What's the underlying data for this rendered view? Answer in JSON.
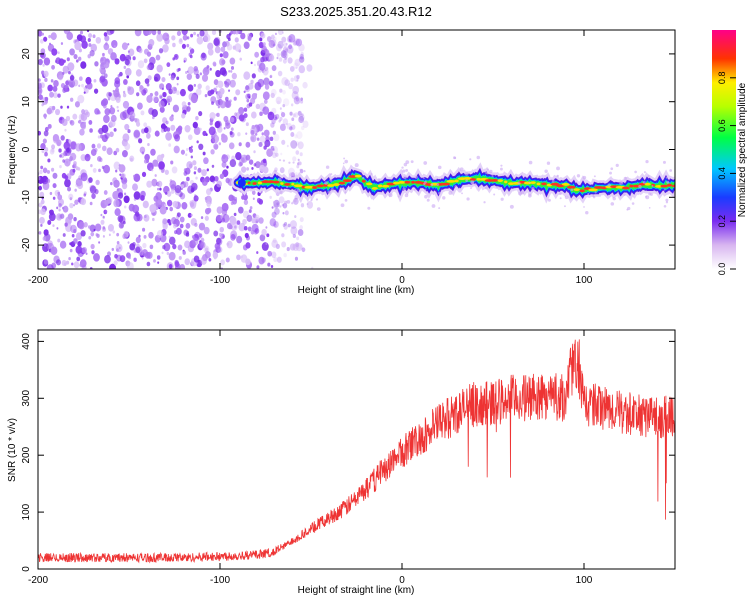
{
  "figure_title": "S233.2025.351.20.43.R12",
  "chart_data": [
    {
      "type": "heatmap",
      "xlabel": "Height of straight line (km)",
      "ylabel": "Frequency (Hz)",
      "xlim": [
        -200,
        150
      ],
      "ylim": [
        -25,
        25
      ],
      "x_ticks": [
        -200,
        -100,
        0,
        100
      ],
      "y_ticks": [
        -20,
        -10,
        0,
        10,
        20
      ],
      "x_tick_labels": [
        "-200",
        "-100",
        "0",
        "100"
      ],
      "y_tick_labels": [
        "-20",
        "-10",
        "0",
        "10",
        "20"
      ],
      "colorbar": {
        "label": "Normalized spectral amplitude",
        "range": [
          0,
          1
        ],
        "ticks": [
          0,
          0.2,
          0.4,
          0.6,
          0.8
        ],
        "tick_labels": [
          "0.0",
          "0.2",
          "0.4",
          "0.6",
          "0.8"
        ]
      },
      "noise_region_x": [
        -200,
        -60
      ],
      "signal_track": {
        "x": [
          -90,
          -80,
          -70,
          -60,
          -50,
          -40,
          -30,
          -25,
          -20,
          -15,
          -10,
          0,
          10,
          20,
          30,
          40,
          50,
          60,
          70,
          80,
          90,
          95,
          100,
          110,
          120,
          130,
          140,
          150
        ],
        "y": [
          -7,
          -7,
          -6.8,
          -7.5,
          -8,
          -7.5,
          -6.5,
          -5.5,
          -7,
          -8,
          -7.5,
          -7,
          -7,
          -7.5,
          -6.5,
          -6,
          -6.5,
          -7,
          -7,
          -7.5,
          -7.5,
          -8.5,
          -8.5,
          -8,
          -8,
          -7.5,
          -7.5,
          -7.5
        ]
      }
    },
    {
      "type": "line",
      "xlabel": "Height of straight line (km)",
      "ylabel": "SNR (10 * v/v)",
      "xlim": [
        -200,
        150
      ],
      "ylim": [
        0,
        420
      ],
      "x_ticks": [
        -200,
        -100,
        0,
        100
      ],
      "y_ticks": [
        0,
        100,
        200,
        300,
        400
      ],
      "x_tick_labels": [
        "-200",
        "-100",
        "0",
        "100"
      ],
      "y_tick_labels": [
        "0",
        "100",
        "200",
        "300",
        "400"
      ],
      "color": "#ee3333",
      "series": [
        {
          "x": [
            -200,
            -180,
            -160,
            -140,
            -120,
            -100,
            -80,
            -70,
            -60,
            -50,
            -40,
            -30,
            -20,
            -10,
            0,
            10,
            20,
            30,
            40,
            50,
            60,
            70,
            80,
            90,
            95,
            100,
            110,
            120,
            130,
            140,
            150
          ],
          "values": [
            20,
            20,
            20,
            20,
            20,
            22,
            25,
            30,
            50,
            70,
            90,
            110,
            140,
            175,
            205,
            230,
            255,
            275,
            290,
            290,
            300,
            300,
            305,
            300,
            380,
            290,
            285,
            275,
            270,
            265,
            270
          ]
        }
      ]
    }
  ]
}
